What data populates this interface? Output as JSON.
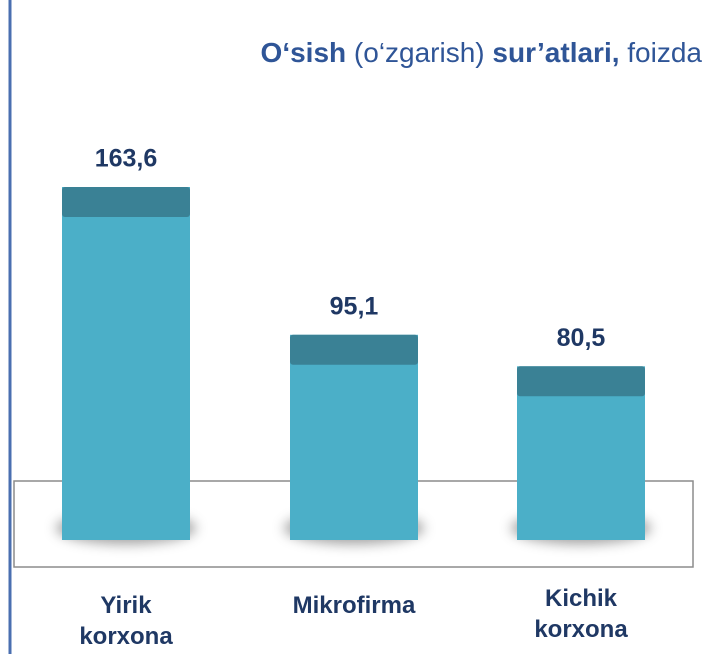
{
  "chart_data": {
    "type": "bar",
    "title": [
      "O‘sish",
      "(o‘zgarish)",
      "sur’atlari,",
      "foizda"
    ],
    "categories": [
      "Yirik korxona",
      "Mikrofirma",
      "Kichik korxona"
    ],
    "values": [
      163.6,
      95.1,
      80.5
    ],
    "value_labels": [
      "163,6",
      "95,1",
      "80,5"
    ],
    "color": "#4bafc8"
  }
}
